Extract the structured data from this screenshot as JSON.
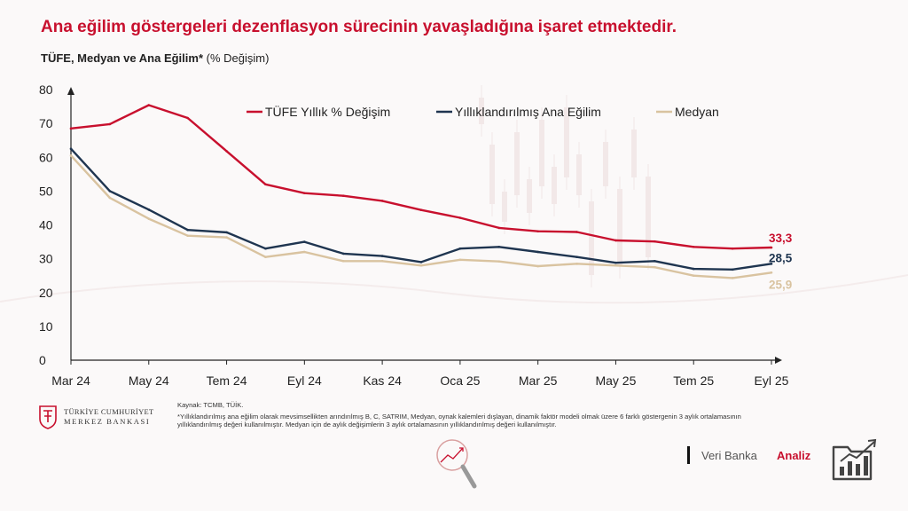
{
  "title": "Ana eğilim göstergeleri dezenflasyon sürecinin yavaşladığına işaret etmektedir.",
  "subtitle_bold": "TÜFE, Medyan ve Ana Eğilim*",
  "subtitle_normal": "(% Değişim)",
  "chart_data": {
    "type": "line",
    "ylim": [
      0,
      80
    ],
    "yticks": [
      0,
      10,
      20,
      30,
      40,
      50,
      60,
      70,
      80
    ],
    "xtick_labels": [
      "Mar 24",
      "May 24",
      "Tem 24",
      "Eyl 24",
      "Kas 24",
      "Oca 25",
      "Mar 25",
      "May 25",
      "Tem 25",
      "Eyl 25"
    ],
    "x": [
      "Mar 24",
      "Nis 24",
      "May 24",
      "Haz 24",
      "Tem 24",
      "Ağu 24",
      "Eyl 24",
      "Eki 24",
      "Kas 24",
      "Ara 24",
      "Oca 25",
      "Şub 25",
      "Mar 25",
      "Nis 25",
      "May 25",
      "Haz 25",
      "Tem 25",
      "Ağu 25",
      "Eyl 25"
    ],
    "series": [
      {
        "name": "TÜFE Yıllık % Değişim",
        "color": "#c8102e",
        "values": [
          68.5,
          69.8,
          75.4,
          71.6,
          61.8,
          52.0,
          49.4,
          48.6,
          47.1,
          44.4,
          42.1,
          39.1,
          38.1,
          37.9,
          35.4,
          35.1,
          33.5,
          33.0,
          33.3
        ],
        "end_label": "33,3"
      },
      {
        "name": "Yıllıklandırılmış Ana Eğilim",
        "color": "#1f3550",
        "values": [
          62.5,
          50.0,
          44.5,
          38.5,
          37.8,
          33.0,
          35.0,
          31.5,
          30.8,
          29.0,
          33.0,
          33.5,
          32.0,
          30.5,
          28.8,
          29.3,
          27.0,
          26.8,
          28.5
        ],
        "end_label": "28,5"
      },
      {
        "name": "Medyan",
        "color": "#d9c3a0",
        "values": [
          60.5,
          48.0,
          41.8,
          36.8,
          36.3,
          30.5,
          32.0,
          29.3,
          29.3,
          28.0,
          29.7,
          29.2,
          27.8,
          28.5,
          28.0,
          27.5,
          25.0,
          24.3,
          25.9
        ],
        "end_label": "25,9"
      }
    ],
    "legend_position": "top"
  },
  "logo": {
    "line1": "TÜRKİYE CUMHURİYET",
    "line2": "MERKEZ BANKASI"
  },
  "source": "Kaynak: TCMB, TÜİK.",
  "footnote": "*Yıllıklandırılmış ana eğilim olarak mevsimsellikten arındırılmış B, C, SATRIM, Medyan, oynak kalemleri dışlayan, dinamik faktör modeli olmak üzere 6 farklı göstergenin 3 aylık ortalamasının yıllıklandırılmış değeri kullanılmıştır. Medyan için de aylık değişimlerin 3 aylık ortalamasının yıllıklandırılmış değeri kullanılmıştır.",
  "footer": {
    "veri": "Veri Banka",
    "analiz": "Analiz"
  }
}
